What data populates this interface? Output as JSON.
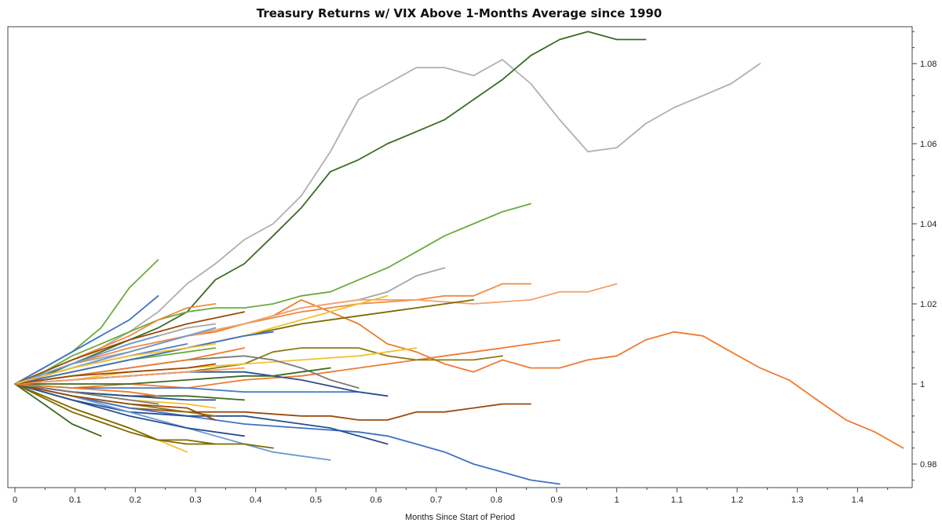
{
  "chart_data": {
    "type": "line",
    "title": "Treasury Returns w/ VIX Above 1-Months Average since 1990",
    "xlabel": "Months Since Start of Period",
    "ylabel": "",
    "xlim": [
      0,
      1.5
    ],
    "ylim": [
      0.976,
      1.088
    ],
    "x_ticks": [
      0,
      0.1,
      0.2,
      0.3,
      0.4,
      0.5,
      0.6,
      0.7,
      0.8,
      0.9,
      1,
      1.1,
      1.2,
      1.3,
      1.4
    ],
    "x_tick_labels": [
      "0",
      "0.1",
      "0.2",
      "0.3",
      "0.4",
      "0.5",
      "0.6",
      "0.7",
      "0.8",
      "0.9",
      "1",
      "1.1",
      "1.2",
      "1.3",
      "1.4"
    ],
    "y_ticks": [
      0.98,
      1.0,
      1.02,
      1.04,
      1.06,
      1.08
    ],
    "y_tick_labels": [
      "0.98",
      "1",
      "1.02",
      "1.04",
      "1.06",
      "1.08"
    ],
    "y_axis_side": "right",
    "grid": false,
    "legend": "none",
    "series": [
      {
        "name": "grey-long",
        "color": "#b0b0b0",
        "x": [
          0,
          0.048,
          0.095,
          0.143,
          0.19,
          0.238,
          0.286,
          0.333,
          0.381,
          0.429,
          0.476,
          0.524,
          0.571,
          0.619,
          0.667,
          0.714,
          0.762,
          0.81,
          0.857,
          0.905,
          0.952,
          1.0,
          1.048,
          1.095,
          1.143,
          1.19,
          1.238
        ],
        "y": [
          1.0,
          1.003,
          1.006,
          1.009,
          1.013,
          1.018,
          1.025,
          1.03,
          1.036,
          1.04,
          1.047,
          1.058,
          1.071,
          1.075,
          1.079,
          1.079,
          1.077,
          1.081,
          1.075,
          1.066,
          1.058,
          1.059,
          1.065,
          1.069,
          1.072,
          1.075,
          1.08
        ]
      },
      {
        "name": "darkgreen-long",
        "color": "#3a6b22",
        "x": [
          0,
          0.048,
          0.095,
          0.143,
          0.19,
          0.238,
          0.286,
          0.333,
          0.381,
          0.429,
          0.476,
          0.524,
          0.571,
          0.619,
          0.667,
          0.714,
          0.762,
          0.81,
          0.857,
          0.905,
          0.952,
          1.0,
          1.048
        ],
        "y": [
          1.0,
          1.002,
          1.005,
          1.008,
          1.011,
          1.014,
          1.018,
          1.026,
          1.03,
          1.037,
          1.044,
          1.053,
          1.056,
          1.06,
          1.063,
          1.066,
          1.071,
          1.076,
          1.082,
          1.086,
          1.088,
          1.086,
          1.086
        ]
      },
      {
        "name": "orange-longest",
        "color": "#ee7b30",
        "x": [
          0,
          0.048,
          0.095,
          0.143,
          0.19,
          0.238,
          0.286,
          0.333,
          0.381,
          0.429,
          0.476,
          0.524,
          0.571,
          0.619,
          0.667,
          0.714,
          0.762,
          0.81,
          0.857,
          0.905,
          0.952,
          1.0,
          1.048,
          1.095,
          1.143,
          1.19,
          1.238,
          1.286,
          1.333,
          1.381,
          1.429,
          1.476
        ],
        "y": [
          1.0,
          1.002,
          1.004,
          1.006,
          1.008,
          1.01,
          1.012,
          1.013,
          1.015,
          1.017,
          1.021,
          1.018,
          1.015,
          1.01,
          1.008,
          1.005,
          1.003,
          1.006,
          1.004,
          1.004,
          1.006,
          1.007,
          1.011,
          1.013,
          1.012,
          1.008,
          1.004,
          1.001,
          0.996,
          0.991,
          0.988,
          0.984
        ]
      },
      {
        "name": "lightgreen",
        "color": "#6aab3e",
        "x": [
          0,
          0.048,
          0.095,
          0.143,
          0.19,
          0.238,
          0.286,
          0.333,
          0.381,
          0.429,
          0.476,
          0.524,
          0.571,
          0.619,
          0.667,
          0.714,
          0.762,
          0.81,
          0.857
        ],
        "y": [
          1.0,
          1.003,
          1.007,
          1.01,
          1.013,
          1.016,
          1.018,
          1.019,
          1.019,
          1.02,
          1.022,
          1.023,
          1.026,
          1.029,
          1.033,
          1.037,
          1.04,
          1.043,
          1.045
        ]
      },
      {
        "name": "grey-mid",
        "color": "#a6a6a6",
        "x": [
          0,
          0.095,
          0.19,
          0.286,
          0.381,
          0.476,
          0.571,
          0.619,
          0.667,
          0.714
        ],
        "y": [
          1.0,
          1.005,
          1.008,
          1.012,
          1.015,
          1.019,
          1.021,
          1.023,
          1.027,
          1.029
        ]
      },
      {
        "name": "orange-2",
        "color": "#f08a3e",
        "x": [
          0,
          0.095,
          0.19,
          0.286,
          0.381,
          0.476,
          0.571,
          0.667,
          0.714,
          0.762,
          0.81,
          0.857
        ],
        "y": [
          1.0,
          1.005,
          1.009,
          1.012,
          1.015,
          1.018,
          1.02,
          1.021,
          1.022,
          1.022,
          1.025,
          1.025
        ]
      },
      {
        "name": "lightorange-1",
        "color": "#f4a16a",
        "x": [
          0,
          0.095,
          0.19,
          0.286,
          0.381,
          0.476,
          0.571,
          0.667,
          0.762,
          0.857,
          0.905,
          0.952,
          1.0
        ],
        "y": [
          1.0,
          1.004,
          1.008,
          1.012,
          1.015,
          1.019,
          1.021,
          1.021,
          1.02,
          1.021,
          1.023,
          1.023,
          1.025
        ]
      },
      {
        "name": "olive-1",
        "color": "#7f6a00",
        "x": [
          0,
          0.095,
          0.19,
          0.286,
          0.381,
          0.476,
          0.571,
          0.667,
          0.762
        ],
        "y": [
          1.0,
          1.003,
          1.006,
          1.009,
          1.012,
          1.015,
          1.017,
          1.019,
          1.021
        ]
      },
      {
        "name": "orange-3",
        "color": "#ee7b30",
        "x": [
          0,
          0.095,
          0.19,
          0.286,
          0.381,
          0.476,
          0.571,
          0.619,
          0.667,
          0.714,
          0.762,
          0.81,
          0.857,
          0.905
        ],
        "y": [
          1.0,
          0.999,
          1.0,
          0.999,
          1.001,
          1.002,
          1.004,
          1.005,
          1.006,
          1.007,
          1.008,
          1.009,
          1.01,
          1.011
        ]
      },
      {
        "name": "olive-2",
        "color": "#8a7a10",
        "x": [
          0,
          0.095,
          0.19,
          0.286,
          0.381,
          0.429,
          0.476,
          0.571,
          0.619,
          0.667,
          0.714,
          0.762,
          0.81
        ],
        "y": [
          1.0,
          1.001,
          1.002,
          1.003,
          1.005,
          1.008,
          1.009,
          1.009,
          1.007,
          1.006,
          1.006,
          1.006,
          1.007
        ]
      },
      {
        "name": "yellow-1",
        "color": "#f2c12e",
        "x": [
          0,
          0.095,
          0.19,
          0.286,
          0.381,
          0.476,
          0.571,
          0.619,
          0.667
        ],
        "y": [
          1.0,
          1.001,
          1.003,
          1.004,
          1.005,
          1.006,
          1.007,
          1.008,
          1.009
        ]
      },
      {
        "name": "yellow-2",
        "color": "#f2c12e",
        "x": [
          0,
          0.095,
          0.19,
          0.286,
          0.381,
          0.476,
          0.571,
          0.619
        ],
        "y": [
          1.0,
          1.003,
          1.006,
          1.009,
          1.012,
          1.016,
          1.02,
          1.022
        ]
      },
      {
        "name": "brown-1",
        "color": "#9c4a0c",
        "x": [
          0,
          0.095,
          0.19,
          0.286,
          0.381,
          0.476,
          0.524,
          0.571,
          0.619,
          0.667,
          0.714,
          0.762,
          0.81,
          0.857
        ],
        "y": [
          1.0,
          0.997,
          0.994,
          0.993,
          0.993,
          0.992,
          0.992,
          0.991,
          0.991,
          0.993,
          0.993,
          0.994,
          0.995,
          0.995
        ]
      },
      {
        "name": "blue-1",
        "color": "#3d72c4",
        "x": [
          0,
          0.095,
          0.19,
          0.286,
          0.381,
          0.476,
          0.571,
          0.619,
          0.667,
          0.714,
          0.762,
          0.81,
          0.857,
          0.905
        ],
        "y": [
          1.0,
          0.997,
          0.994,
          0.992,
          0.99,
          0.989,
          0.988,
          0.987,
          0.985,
          0.983,
          0.98,
          0.978,
          0.976,
          0.975
        ]
      },
      {
        "name": "navy-1",
        "color": "#2a4f8f",
        "x": [
          0,
          0.095,
          0.19,
          0.286,
          0.381,
          0.476,
          0.524,
          0.571,
          0.619
        ],
        "y": [
          1.0,
          0.996,
          0.993,
          0.992,
          0.992,
          0.99,
          0.989,
          0.987,
          0.985
        ]
      },
      {
        "name": "lightblue-1",
        "color": "#6a9ad6",
        "x": [
          0,
          0.095,
          0.19,
          0.286,
          0.381,
          0.429,
          0.476,
          0.524
        ],
        "y": [
          1.0,
          0.997,
          0.993,
          0.989,
          0.985,
          0.983,
          0.982,
          0.981
        ]
      },
      {
        "name": "blue-2",
        "color": "#4a7ec9",
        "x": [
          0,
          0.095,
          0.19,
          0.286,
          0.381,
          0.476,
          0.524,
          0.571
        ],
        "y": [
          1.0,
          0.999,
          0.999,
          0.999,
          0.998,
          0.998,
          0.998,
          0.998
        ]
      },
      {
        "name": "navy-2",
        "color": "#2a4f8f",
        "x": [
          0,
          0.095,
          0.19,
          0.286,
          0.381,
          0.476,
          0.571,
          0.619
        ],
        "y": [
          1.0,
          1.001,
          1.002,
          1.003,
          1.003,
          1.001,
          0.998,
          0.997
        ]
      },
      {
        "name": "grey-2",
        "color": "#7a7a7a",
        "x": [
          0,
          0.095,
          0.19,
          0.286,
          0.381,
          0.429,
          0.476,
          0.524,
          0.571
        ],
        "y": [
          1.0,
          1.002,
          1.004,
          1.006,
          1.007,
          1.006,
          1.004,
          1.001,
          0.999
        ]
      },
      {
        "name": "green-short",
        "color": "#6aab3e",
        "x": [
          0,
          0.048,
          0.095,
          0.143,
          0.19,
          0.238
        ],
        "y": [
          1.0,
          1.004,
          1.008,
          1.014,
          1.024,
          1.031
        ]
      },
      {
        "name": "blue-short",
        "color": "#3d72c4",
        "x": [
          0,
          0.095,
          0.19,
          0.238
        ],
        "y": [
          1.0,
          1.008,
          1.016,
          1.022
        ]
      },
      {
        "name": "darkgreen-short",
        "color": "#3a6b22",
        "x": [
          0,
          0.048,
          0.095,
          0.143
        ],
        "y": [
          1.0,
          0.995,
          0.99,
          0.987
        ]
      },
      {
        "name": "yellow-short",
        "color": "#f2c12e",
        "x": [
          0,
          0.095,
          0.19,
          0.238,
          0.286
        ],
        "y": [
          1.0,
          0.994,
          0.989,
          0.986,
          0.983
        ]
      },
      {
        "name": "olive-short",
        "color": "#7f6a00",
        "x": [
          0,
          0.095,
          0.19,
          0.238,
          0.286,
          0.333,
          0.381,
          0.429
        ],
        "y": [
          1.0,
          0.994,
          0.989,
          0.986,
          0.985,
          0.985,
          0.985,
          0.984
        ]
      },
      {
        "name": "olive-short2",
        "color": "#7f6a00",
        "x": [
          0,
          0.095,
          0.19,
          0.238,
          0.286,
          0.333
        ],
        "y": [
          1.0,
          0.993,
          0.988,
          0.986,
          0.986,
          0.985
        ]
      },
      {
        "name": "navy-short",
        "color": "#2a4f8f",
        "x": [
          0,
          0.095,
          0.19,
          0.286,
          0.381
        ],
        "y": [
          1.0,
          0.996,
          0.992,
          0.989,
          0.987
        ]
      },
      {
        "name": "orange-short",
        "color": "#f08a3e",
        "x": [
          0,
          0.095,
          0.19,
          0.238,
          0.286,
          0.333
        ],
        "y": [
          1.0,
          1.006,
          1.012,
          1.016,
          1.019,
          1.02
        ]
      },
      {
        "name": "brown-short",
        "color": "#9c4a0c",
        "x": [
          0,
          0.095,
          0.19,
          0.286,
          0.381
        ],
        "y": [
          1.0,
          1.006,
          1.011,
          1.015,
          1.018
        ]
      },
      {
        "name": "grey-short",
        "color": "#a6a6a6",
        "x": [
          0,
          0.095,
          0.19,
          0.286,
          0.333
        ],
        "y": [
          1.0,
          1.005,
          1.01,
          1.014,
          1.015
        ]
      },
      {
        "name": "lightblue-short",
        "color": "#6a9ad6",
        "x": [
          0,
          0.095,
          0.19,
          0.286,
          0.333
        ],
        "y": [
          1.0,
          1.004,
          1.008,
          1.012,
          1.014
        ]
      },
      {
        "name": "olive-short3",
        "color": "#8a7a10",
        "x": [
          0,
          0.095,
          0.19,
          0.286,
          0.333
        ],
        "y": [
          1.0,
          0.997,
          0.995,
          0.993,
          0.992
        ]
      },
      {
        "name": "brown-short2",
        "color": "#9c4a0c",
        "x": [
          0,
          0.095,
          0.19,
          0.286,
          0.333
        ],
        "y": [
          1.0,
          0.997,
          0.995,
          0.994,
          0.991
        ]
      },
      {
        "name": "green-short2",
        "color": "#6aab3e",
        "x": [
          0,
          0.095,
          0.19,
          0.286,
          0.333
        ],
        "y": [
          1.0,
          1.003,
          1.006,
          1.008,
          1.009
        ]
      },
      {
        "name": "orange-short2",
        "color": "#ee7b30",
        "x": [
          0,
          0.095,
          0.19,
          0.286,
          0.381
        ],
        "y": [
          1.0,
          1.002,
          1.004,
          1.006,
          1.009
        ]
      },
      {
        "name": "blue-short2",
        "color": "#3d72c4",
        "x": [
          0,
          0.095,
          0.19,
          0.286,
          0.381,
          0.429
        ],
        "y": [
          1.0,
          1.003,
          1.006,
          1.009,
          1.012,
          1.013
        ]
      },
      {
        "name": "green-short3",
        "color": "#3a6b22",
        "x": [
          0,
          0.095,
          0.19,
          0.286,
          0.381,
          0.429,
          0.476,
          0.524
        ],
        "y": [
          1.0,
          1.0,
          1.0,
          1.001,
          1.002,
          1.002,
          1.003,
          1.004
        ]
      },
      {
        "name": "yellow-short3",
        "color": "#f2c12e",
        "x": [
          0,
          0.095,
          0.19,
          0.286,
          0.333
        ],
        "y": [
          1.0,
          0.998,
          0.996,
          0.995,
          0.994
        ]
      },
      {
        "name": "lightorange-short",
        "color": "#f4a16a",
        "x": [
          0,
          0.095,
          0.19,
          0.286,
          0.381
        ],
        "y": [
          1.0,
          1.001,
          1.002,
          1.003,
          1.004
        ]
      },
      {
        "name": "darkgreen-short2",
        "color": "#3a6b22",
        "x": [
          0,
          0.095,
          0.19,
          0.286,
          0.381
        ],
        "y": [
          1.0,
          0.998,
          0.997,
          0.997,
          0.996
        ]
      },
      {
        "name": "navy-short2",
        "color": "#2a4f8f",
        "x": [
          0,
          0.095,
          0.19,
          0.286,
          0.333
        ],
        "y": [
          1.0,
          0.998,
          0.997,
          0.996,
          0.996
        ]
      },
      {
        "name": "lightblue-short2",
        "color": "#6a9ad6",
        "x": [
          0,
          0.095,
          0.19,
          0.238
        ],
        "y": [
          1.0,
          1.005,
          1.01,
          1.012
        ]
      },
      {
        "name": "blue-short3",
        "color": "#4a7ec9",
        "x": [
          0,
          0.095,
          0.19,
          0.286
        ],
        "y": [
          1.0,
          1.004,
          1.007,
          1.01
        ]
      },
      {
        "name": "brown-short3",
        "color": "#9c4a0c",
        "x": [
          0,
          0.095,
          0.19,
          0.286,
          0.333
        ],
        "y": [
          1.0,
          1.002,
          1.003,
          1.004,
          1.005
        ]
      },
      {
        "name": "yellow-short4",
        "color": "#f2c12e",
        "x": [
          0,
          0.095,
          0.19,
          0.286,
          0.333
        ],
        "y": [
          1.0,
          1.004,
          1.007,
          1.009,
          1.01
        ]
      },
      {
        "name": "grey-short2",
        "color": "#7a7a7a",
        "x": [
          0,
          0.095,
          0.19,
          0.238
        ],
        "y": [
          1.0,
          0.998,
          0.996,
          0.995
        ]
      },
      {
        "name": "orange-short3",
        "color": "#ee7b30",
        "x": [
          0,
          0.095,
          0.19,
          0.238
        ],
        "y": [
          1.0,
          0.999,
          0.998,
          0.997
        ]
      }
    ]
  }
}
